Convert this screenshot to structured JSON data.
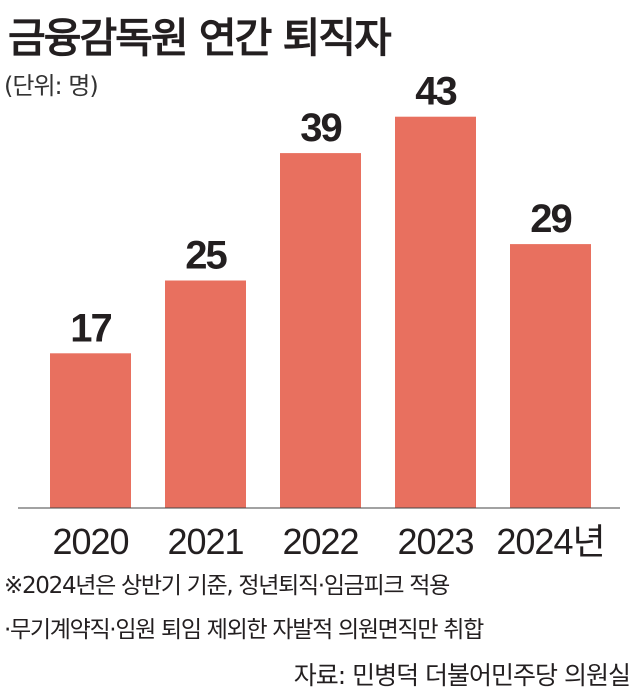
{
  "chart_data": {
    "type": "bar",
    "title": "금융감독원 연간 퇴직자",
    "unit_label": "(단위: 명)",
    "categories": [
      "2020",
      "2021",
      "2022",
      "2023",
      "2024년"
    ],
    "values": [
      17,
      25,
      39,
      43,
      29
    ],
    "ylim": [
      0,
      45
    ],
    "grid": false,
    "legend": "none",
    "bar_color": "#e8705f",
    "notes": [
      "※2024년은 상반기 기준, 정년퇴직·임금피크 적용",
      "·무기계약직·임원 퇴임 제외한 자발적 의원면직만 취합"
    ],
    "source": "자료: 민병덕 더불어민주당 의원실"
  }
}
